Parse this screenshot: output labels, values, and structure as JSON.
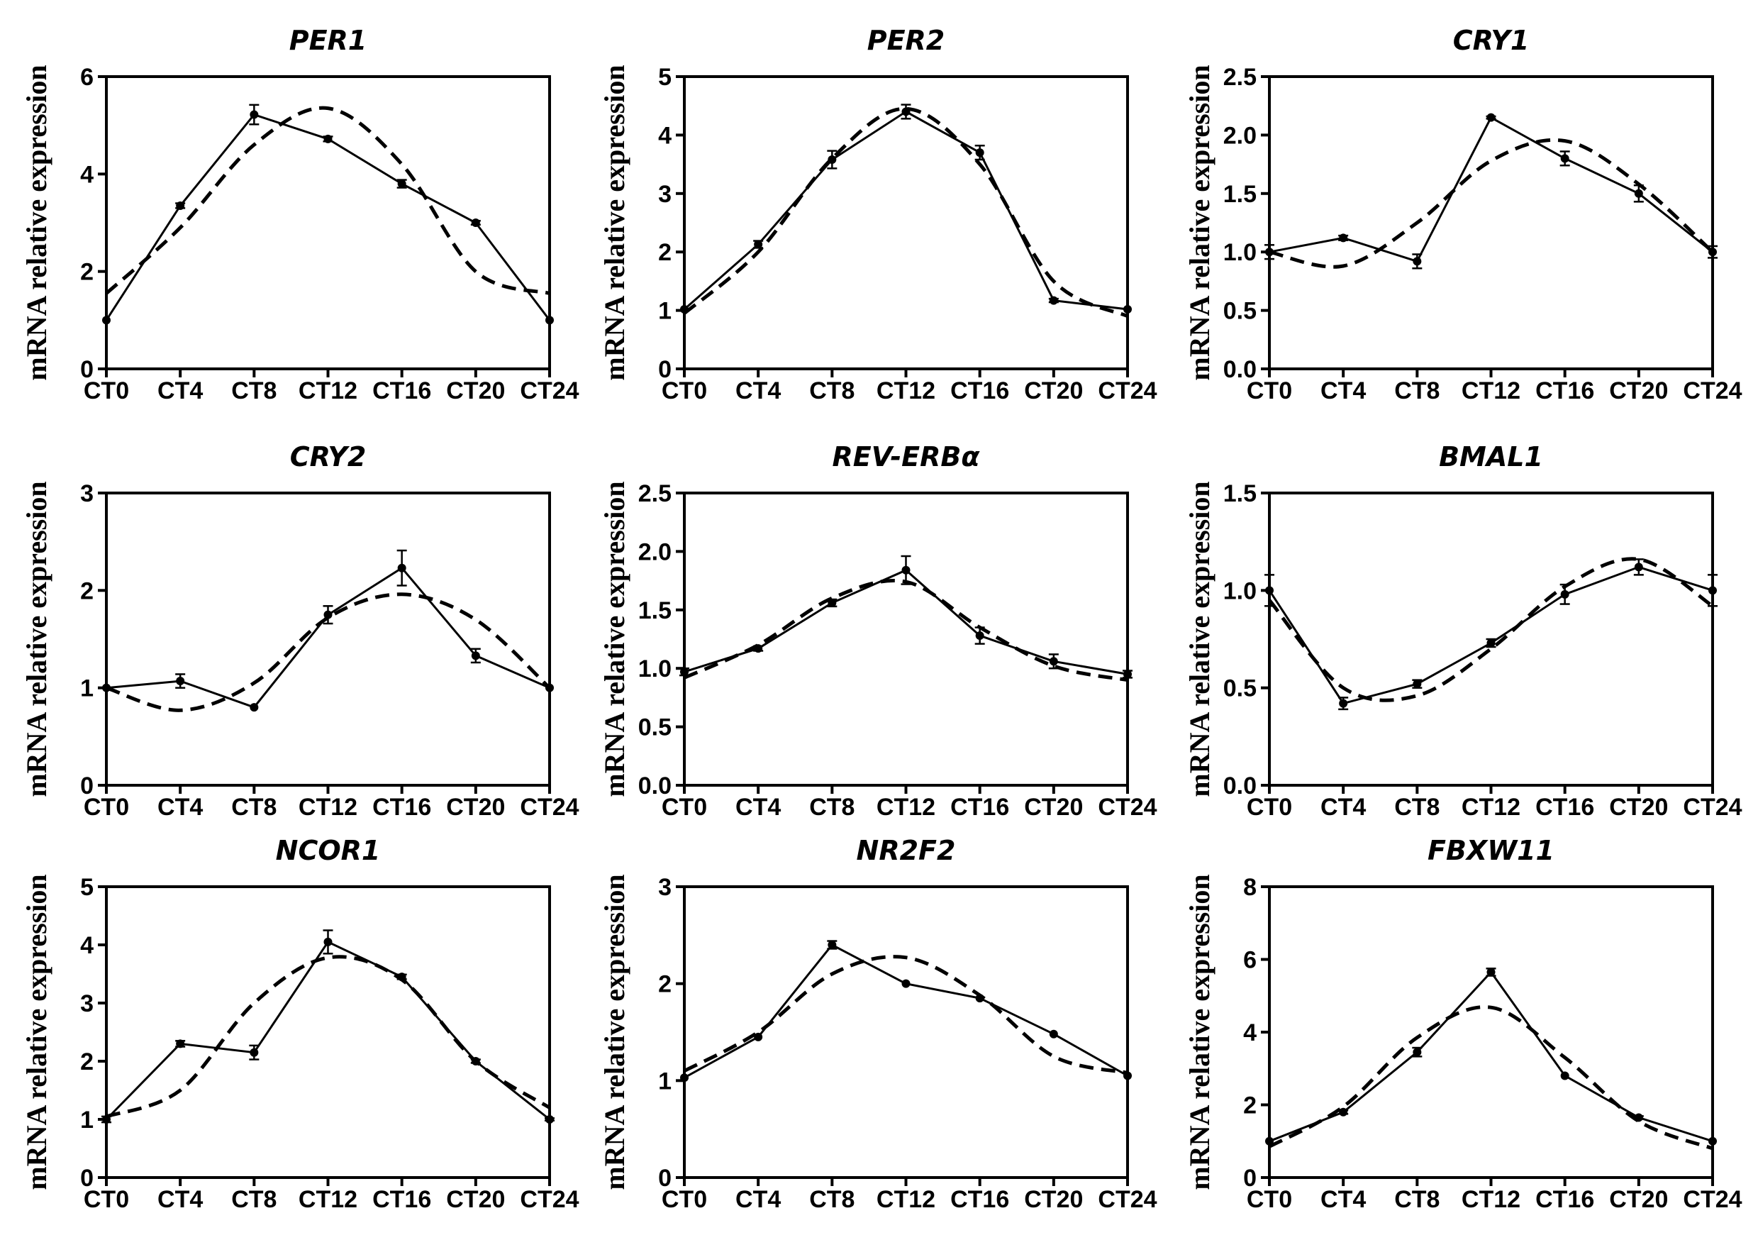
{
  "chart_data": [
    {
      "type": "line",
      "title": "PER1",
      "ylabel": "mRNA relative expression",
      "xlabel": "",
      "categories": [
        "CT0",
        "CT4",
        "CT8",
        "CT12",
        "CT16",
        "CT20",
        "CT24"
      ],
      "yticks": [
        "0",
        "2",
        "4",
        "6"
      ],
      "ylim": [
        0,
        6
      ],
      "series": [
        {
          "values": [
            1.0,
            3.35,
            5.22,
            4.72,
            3.8,
            3.0,
            1.0
          ],
          "errors": [
            0.0,
            0.05,
            0.2,
            0.05,
            0.08,
            0.04,
            0.0
          ],
          "style": "solid-with-markers"
        },
        {
          "values": [
            1.55,
            2.9,
            4.6,
            5.35,
            4.2,
            2.0,
            1.55
          ],
          "style": "dashed-fit"
        }
      ]
    },
    {
      "type": "line",
      "title": "PER2",
      "ylabel": "mRNA relative expression",
      "xlabel": "",
      "categories": [
        "CT0",
        "CT4",
        "CT8",
        "CT12",
        "CT16",
        "CT20",
        "CT24"
      ],
      "yticks": [
        "0",
        "1",
        "2",
        "3",
        "4",
        "5"
      ],
      "ylim": [
        0,
        5
      ],
      "series": [
        {
          "values": [
            1.02,
            2.13,
            3.58,
            4.4,
            3.7,
            1.17,
            1.02
          ],
          "errors": [
            0.0,
            0.06,
            0.15,
            0.12,
            0.12,
            0.03,
            0.0
          ],
          "style": "solid-with-markers"
        },
        {
          "values": [
            0.95,
            2.0,
            3.6,
            4.45,
            3.5,
            1.5,
            0.9
          ],
          "style": "dashed-fit"
        }
      ]
    },
    {
      "type": "line",
      "title": "CRY1",
      "ylabel": "mRNA relative expression",
      "xlabel": "",
      "categories": [
        "CT0",
        "CT4",
        "CT8",
        "CT12",
        "CT16",
        "CT20",
        "CT24"
      ],
      "yticks": [
        "0.0",
        "0.5",
        "1.0",
        "1.5",
        "2.0",
        "2.5"
      ],
      "ylim": [
        0,
        2.5
      ],
      "series": [
        {
          "values": [
            1.0,
            1.12,
            0.92,
            2.15,
            1.8,
            1.5,
            1.0
          ],
          "errors": [
            0.06,
            0.02,
            0.06,
            0.01,
            0.06,
            0.07,
            0.05
          ],
          "style": "solid-with-markers"
        },
        {
          "values": [
            1.0,
            0.88,
            1.25,
            1.78,
            1.95,
            1.58,
            1.0
          ],
          "style": "dashed-fit"
        }
      ]
    },
    {
      "type": "line",
      "title": "CRY2",
      "ylabel": "mRNA relative expression",
      "xlabel": "",
      "categories": [
        "CT0",
        "CT4",
        "CT8",
        "CT12",
        "CT16",
        "CT20",
        "CT24"
      ],
      "yticks": [
        "0",
        "1",
        "2",
        "3"
      ],
      "ylim": [
        0,
        3
      ],
      "series": [
        {
          "values": [
            1.0,
            1.07,
            0.8,
            1.75,
            2.23,
            1.33,
            1.0
          ],
          "errors": [
            0.0,
            0.07,
            0.0,
            0.09,
            0.18,
            0.07,
            0.0
          ],
          "style": "solid-with-markers"
        },
        {
          "values": [
            1.0,
            0.77,
            1.05,
            1.72,
            1.96,
            1.7,
            1.0
          ],
          "style": "dashed-fit"
        }
      ]
    },
    {
      "type": "line",
      "title": "REV-ERBα",
      "ylabel": "mRNA relative expression",
      "xlabel": "",
      "categories": [
        "CT0",
        "CT4",
        "CT8",
        "CT12",
        "CT16",
        "CT20",
        "CT24"
      ],
      "yticks": [
        "0.0",
        "0.5",
        "1.0",
        "1.5",
        "2.0",
        "2.5"
      ],
      "ylim": [
        0,
        2.5
      ],
      "series": [
        {
          "values": [
            0.97,
            1.17,
            1.56,
            1.84,
            1.28,
            1.06,
            0.95
          ],
          "errors": [
            0.03,
            0.02,
            0.03,
            0.12,
            0.07,
            0.06,
            0.03
          ],
          "style": "solid-with-markers"
        },
        {
          "values": [
            0.92,
            1.2,
            1.6,
            1.74,
            1.35,
            1.02,
            0.9
          ],
          "style": "dashed-fit"
        }
      ]
    },
    {
      "type": "line",
      "title": "BMAL1",
      "ylabel": "mRNA relative expression",
      "xlabel": "",
      "categories": [
        "CT0",
        "CT4",
        "CT8",
        "CT12",
        "CT16",
        "CT20",
        "CT24"
      ],
      "yticks": [
        "0.0",
        "0.5",
        "1.0",
        "1.5"
      ],
      "ylim": [
        0,
        1.5
      ],
      "series": [
        {
          "values": [
            1.0,
            0.42,
            0.52,
            0.73,
            0.98,
            1.12,
            1.0
          ],
          "errors": [
            0.08,
            0.03,
            0.02,
            0.02,
            0.05,
            0.04,
            0.08
          ],
          "style": "solid-with-markers"
        },
        {
          "values": [
            0.95,
            0.5,
            0.46,
            0.7,
            1.02,
            1.16,
            0.92
          ],
          "style": "dashed-fit"
        }
      ]
    },
    {
      "type": "line",
      "title": "NCOR1",
      "ylabel": "mRNA relative expression",
      "xlabel": "",
      "categories": [
        "CT0",
        "CT4",
        "CT8",
        "CT12",
        "CT16",
        "CT20",
        "CT24"
      ],
      "yticks": [
        "0",
        "1",
        "2",
        "3",
        "4",
        "5"
      ],
      "ylim": [
        0,
        5
      ],
      "series": [
        {
          "values": [
            1.0,
            2.3,
            2.15,
            4.05,
            3.45,
            2.0,
            1.0
          ],
          "errors": [
            0.05,
            0.05,
            0.12,
            0.2,
            0.04,
            0.03,
            0.02
          ],
          "style": "solid-with-markers"
        },
        {
          "values": [
            1.05,
            1.5,
            3.0,
            3.78,
            3.4,
            2.0,
            1.2
          ],
          "style": "dashed-fit"
        }
      ]
    },
    {
      "type": "line",
      "title": "NR2F2",
      "ylabel": "mRNA relative expression",
      "xlabel": "",
      "categories": [
        "CT0",
        "CT4",
        "CT8",
        "CT12",
        "CT16",
        "CT20",
        "CT24"
      ],
      "yticks": [
        "0",
        "1",
        "2",
        "3"
      ],
      "ylim": [
        0,
        3
      ],
      "series": [
        {
          "values": [
            1.03,
            1.45,
            2.4,
            2.0,
            1.85,
            1.48,
            1.05
          ],
          "errors": [
            0.0,
            0.0,
            0.04,
            0.0,
            0.0,
            0.0,
            0.0
          ],
          "style": "solid-with-markers"
        },
        {
          "values": [
            1.1,
            1.5,
            2.1,
            2.27,
            1.88,
            1.25,
            1.08
          ],
          "style": "dashed-fit"
        }
      ]
    },
    {
      "type": "line",
      "title": "FBXW11",
      "ylabel": "mRNA relative expression",
      "xlabel": "",
      "categories": [
        "CT0",
        "CT4",
        "CT8",
        "CT12",
        "CT16",
        "CT20",
        "CT24"
      ],
      "yticks": [
        "0",
        "2",
        "4",
        "6",
        "8"
      ],
      "ylim": [
        0,
        8
      ],
      "series": [
        {
          "values": [
            1.0,
            1.8,
            3.45,
            5.65,
            2.8,
            1.65,
            1.0
          ],
          "errors": [
            0.0,
            0.05,
            0.12,
            0.1,
            0.0,
            0.04,
            0.0
          ],
          "style": "solid-with-markers"
        },
        {
          "values": [
            0.85,
            1.95,
            3.85,
            4.68,
            3.3,
            1.55,
            0.8
          ],
          "style": "dashed-fit"
        }
      ]
    }
  ]
}
